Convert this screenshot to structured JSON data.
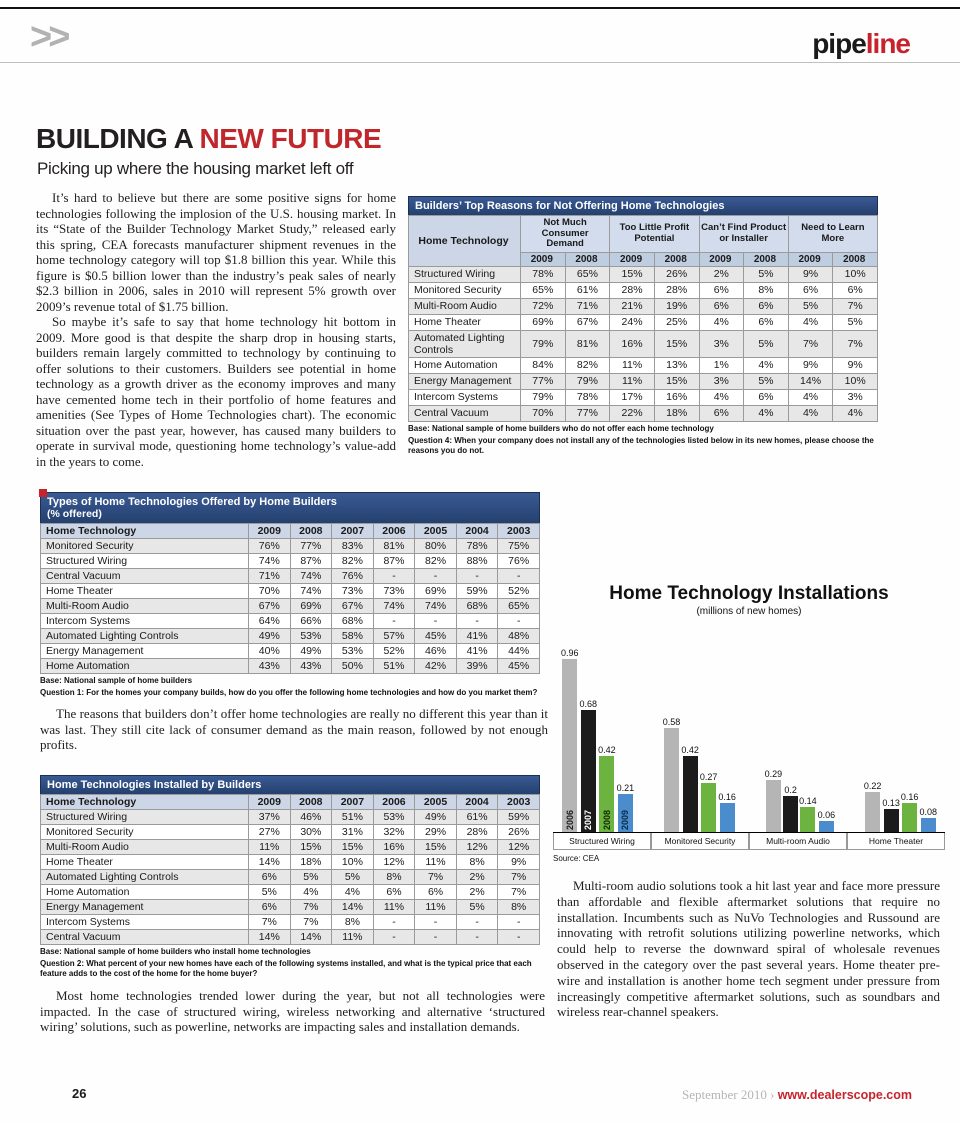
{
  "colors": {
    "accent_red": "#c8232c",
    "table_title_blue": "#24406e",
    "table_header_light_blue": "#ccd6e6",
    "chart_gray": "#b5b5b5",
    "chart_black": "#1b1b1b",
    "chart_green": "#6db33f",
    "chart_blue": "#4a8ccc"
  },
  "header": {
    "chevrons": ">>",
    "logo_black": "pipe",
    "logo_red": "line"
  },
  "article": {
    "title_black": "BUILDING A ",
    "title_red": "NEW FUTURE",
    "subtitle": "Picking up where the housing market left off",
    "para1": "It’s hard to believe but there are some positive signs for home technologies following the implosion of the U.S. housing market. In its “State of the Builder Technology Market Study,” released early this spring, CEA forecasts manufacturer shipment revenues in the home technology category will top $1.8 billion this year. While this figure is $0.5 billion lower than the industry’s peak sales of nearly $2.3 billion in 2006, sales in 2010 will represent 5% growth over 2009’s revenue total of $1.75 billion.",
    "para2": "So maybe it’s safe to say that home technology hit bottom in 2009. More good is that despite the sharp drop in housing starts, builders remain largely committed to technology by continuing to offer solutions to their customers. Builders see potential in home technology as a growth driver as the economy improves and many have cemented home tech in their portfolio of home features and amenities (See Types of Home Technologies chart). The economic situation over the past year, however, has caused many builders to operate in survival mode, questioning home technology’s value-add in the years to come.",
    "para3": "The reasons that builders don’t offer home technologies are really no different this year than it was last. They still cite lack of consumer demand as the main reason, followed by not enough profits.",
    "para4": "Most home technologies trended lower during the year, but not all technologies were impacted. In the case of structured wiring, wireless networking and alternative ‘structured wiring’ solutions, such as powerline, networks are impacting sales and installation demands.",
    "para5": "Multi-room audio solutions took a hit last year and face more pressure than affordable and flexible aftermarket solutions that require no installation. Incumbents such as NuVo Technologies and Russound are innovating with retrofit solutions utilizing powerline networks, which could help to reverse the downward spiral of wholesale revenues observed in the category over the past several years. Home theater pre-wire and installation is another home tech segment under pressure from increasingly competitive aftermarket solutions, such as soundbars and wireless rear-channel speakers."
  },
  "table1": {
    "title": "Builders’ Top Reasons for Not Offering Home Technologies",
    "col_label": "Home Technology",
    "groups": [
      "Not Much Consumer Demand",
      "Too Little Profit Potential",
      "Can’t Find Product or Installer",
      "Need to Learn More"
    ],
    "year_cols": [
      "2009",
      "2008",
      "2009",
      "2008",
      "2009",
      "2008",
      "2009",
      "2008"
    ],
    "rows": [
      {
        "label": "Structured Wiring",
        "values": [
          "78%",
          "65%",
          "15%",
          "26%",
          "2%",
          "5%",
          "9%",
          "10%"
        ]
      },
      {
        "label": "Monitored Security",
        "values": [
          "65%",
          "61%",
          "28%",
          "28%",
          "6%",
          "8%",
          "6%",
          "6%"
        ]
      },
      {
        "label": "Multi-Room Audio",
        "values": [
          "72%",
          "71%",
          "21%",
          "19%",
          "6%",
          "6%",
          "5%",
          "7%"
        ]
      },
      {
        "label": "Home Theater",
        "values": [
          "69%",
          "67%",
          "24%",
          "25%",
          "4%",
          "6%",
          "4%",
          "5%"
        ]
      },
      {
        "label": "Automated Lighting Controls",
        "values": [
          "79%",
          "81%",
          "16%",
          "15%",
          "3%",
          "5%",
          "7%",
          "7%"
        ]
      },
      {
        "label": "Home Automation",
        "values": [
          "84%",
          "82%",
          "11%",
          "13%",
          "1%",
          "4%",
          "9%",
          "9%"
        ]
      },
      {
        "label": "Energy Management",
        "values": [
          "77%",
          "79%",
          "11%",
          "15%",
          "3%",
          "5%",
          "14%",
          "10%"
        ]
      },
      {
        "label": "Intercom Systems",
        "values": [
          "79%",
          "78%",
          "17%",
          "16%",
          "4%",
          "6%",
          "4%",
          "3%"
        ]
      },
      {
        "label": "Central Vacuum",
        "values": [
          "70%",
          "77%",
          "22%",
          "18%",
          "6%",
          "4%",
          "4%",
          "4%"
        ]
      }
    ],
    "base": "Base: National sample of home builders who do not offer each home technology",
    "question": "Question 4: When your company does not install any of the technologies listed below in its new homes, please choose the reasons you do not."
  },
  "table2": {
    "title": "Types of Home Technologies Offered by Home Builders",
    "subtitle": "(% offered)",
    "columns": [
      "Home Technology",
      "2009",
      "2008",
      "2007",
      "2006",
      "2005",
      "2004",
      "2003"
    ],
    "rows": [
      {
        "label": "Monitored Security",
        "values": [
          "76%",
          "77%",
          "83%",
          "81%",
          "80%",
          "78%",
          "75%"
        ]
      },
      {
        "label": "Structured Wiring",
        "values": [
          "74%",
          "87%",
          "82%",
          "87%",
          "82%",
          "88%",
          "76%"
        ]
      },
      {
        "label": "Central Vacuum",
        "values": [
          "71%",
          "74%",
          "76%",
          "-",
          "-",
          "-",
          "-"
        ]
      },
      {
        "label": "Home Theater",
        "values": [
          "70%",
          "74%",
          "73%",
          "73%",
          "69%",
          "59%",
          "52%"
        ]
      },
      {
        "label": "Multi-Room Audio",
        "values": [
          "67%",
          "69%",
          "67%",
          "74%",
          "74%",
          "68%",
          "65%"
        ]
      },
      {
        "label": "Intercom Systems",
        "values": [
          "64%",
          "66%",
          "68%",
          "-",
          "-",
          "-",
          "-"
        ]
      },
      {
        "label": "Automated Lighting Controls",
        "values": [
          "49%",
          "53%",
          "58%",
          "57%",
          "45%",
          "41%",
          "48%"
        ]
      },
      {
        "label": "Energy Management",
        "values": [
          "40%",
          "49%",
          "53%",
          "52%",
          "46%",
          "41%",
          "44%"
        ]
      },
      {
        "label": "Home Automation",
        "values": [
          "43%",
          "43%",
          "50%",
          "51%",
          "42%",
          "39%",
          "45%"
        ]
      }
    ],
    "base": "Base: National sample of home builders",
    "question": "Question 1: For the homes your company builds, how do you offer the following home technologies and how do you market them?"
  },
  "table3": {
    "title": "Home Technologies Installed by Builders",
    "columns": [
      "Home Technology",
      "2009",
      "2008",
      "2007",
      "2006",
      "2005",
      "2004",
      "2003"
    ],
    "rows": [
      {
        "label": "Structured Wiring",
        "values": [
          "37%",
          "46%",
          "51%",
          "53%",
          "49%",
          "61%",
          "59%"
        ]
      },
      {
        "label": "Monitored Security",
        "values": [
          "27%",
          "30%",
          "31%",
          "32%",
          "29%",
          "28%",
          "26%"
        ]
      },
      {
        "label": "Multi-Room Audio",
        "values": [
          "11%",
          "15%",
          "15%",
          "16%",
          "15%",
          "12%",
          "12%"
        ]
      },
      {
        "label": "Home Theater",
        "values": [
          "14%",
          "18%",
          "10%",
          "12%",
          "11%",
          "8%",
          "9%"
        ]
      },
      {
        "label": "Automated Lighting Controls",
        "values": [
          "6%",
          "5%",
          "5%",
          "8%",
          "7%",
          "2%",
          "7%"
        ]
      },
      {
        "label": "Home Automation",
        "values": [
          "5%",
          "4%",
          "4%",
          "6%",
          "6%",
          "2%",
          "7%"
        ]
      },
      {
        "label": "Energy Management",
        "values": [
          "6%",
          "7%",
          "14%",
          "11%",
          "11%",
          "5%",
          "8%"
        ]
      },
      {
        "label": "Intercom Systems",
        "values": [
          "7%",
          "7%",
          "8%",
          "-",
          "-",
          "-",
          "-"
        ]
      },
      {
        "label": "Central Vacuum",
        "values": [
          "14%",
          "14%",
          "11%",
          "-",
          "-",
          "-",
          "-"
        ]
      }
    ],
    "base": "Base: National sample of home builders who install home technologies",
    "question": "Question 2: What percent of your new homes have each of the following systems installed, and what is the typical price that each feature adds to the cost of the home for the home buyer?"
  },
  "chart_data": {
    "type": "bar",
    "title": "Home Technology Installations",
    "subtitle": "(millions of new homes)",
    "source": "Source: CEA",
    "categories": [
      "Structured Wiring",
      "Monitored Security",
      "Multi-room Audio",
      "Home Theater"
    ],
    "series": [
      {
        "name": "2006",
        "color": "#b5b5b5",
        "year_label_color": "#222222",
        "values": [
          0.96,
          0.58,
          0.29,
          0.22
        ]
      },
      {
        "name": "2007",
        "color": "#1b1b1b",
        "year_label_color": "#ffffff",
        "values": [
          0.68,
          0.42,
          0.2,
          0.13
        ]
      },
      {
        "name": "2008",
        "color": "#6db33f",
        "year_label_color": "#102a00",
        "values": [
          0.42,
          0.27,
          0.14,
          0.16
        ]
      },
      {
        "name": "2009",
        "color": "#4a8ccc",
        "year_label_color": "#0d2b4d",
        "values": [
          0.21,
          0.16,
          0.06,
          0.08
        ]
      }
    ],
    "ylim": [
      0,
      1.0
    ],
    "legend_position": "years rotated inside first bar group"
  },
  "footer": {
    "page_number": "26",
    "date": "September 2010",
    "separator": "›",
    "url": "www.dealerscope.com"
  }
}
